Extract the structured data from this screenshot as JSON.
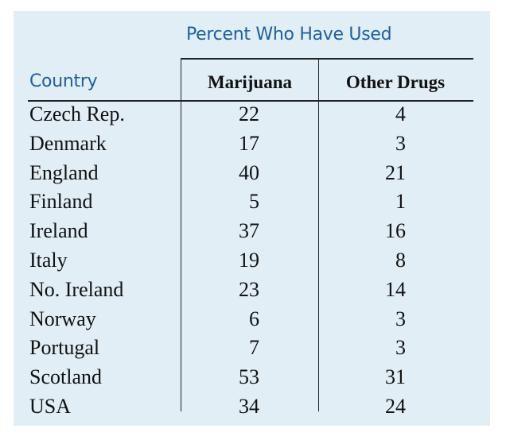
{
  "table": {
    "group_header": "Percent Who Have Used",
    "country_header": "Country",
    "columns": [
      "Marijuana",
      "Other Drugs"
    ],
    "rows": [
      {
        "country": "Czech Rep.",
        "marijuana": "22",
        "other": "4"
      },
      {
        "country": "Denmark",
        "marijuana": "17",
        "other": "3"
      },
      {
        "country": "England",
        "marijuana": "40",
        "other": "21"
      },
      {
        "country": "Finland",
        "marijuana": "5",
        "other": "1"
      },
      {
        "country": "Ireland",
        "marijuana": "37",
        "other": "16"
      },
      {
        "country": "Italy",
        "marijuana": "19",
        "other": "8"
      },
      {
        "country": "No. Ireland",
        "marijuana": "23",
        "other": "14"
      },
      {
        "country": "Norway",
        "marijuana": "6",
        "other": "3"
      },
      {
        "country": "Portugal",
        "marijuana": "7",
        "other": "3"
      },
      {
        "country": "Scotland",
        "marijuana": "53",
        "other": "31"
      },
      {
        "country": "USA",
        "marijuana": "34",
        "other": "24"
      }
    ]
  },
  "colors": {
    "panel_background": "#e2eef6",
    "header_blue": "#1f5f9e",
    "text": "#111111"
  }
}
